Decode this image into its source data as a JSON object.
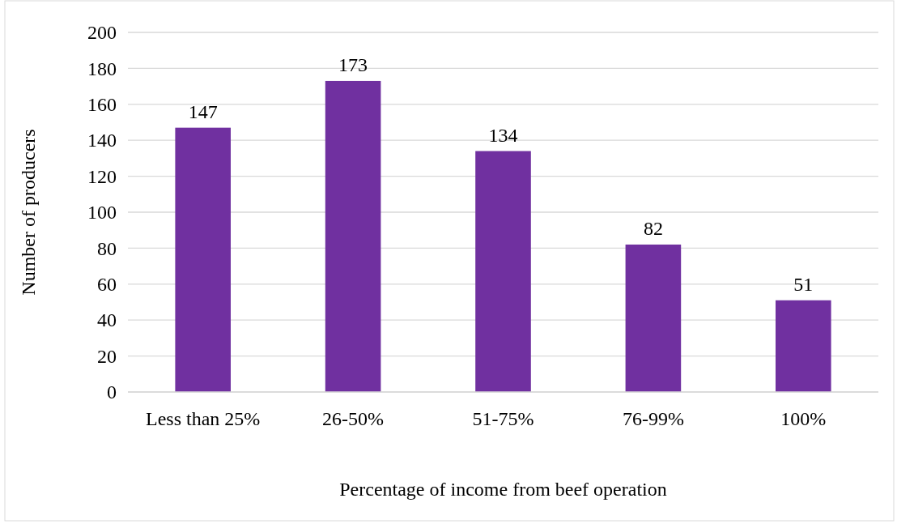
{
  "chart_data": {
    "type": "bar",
    "xlabel": "Percentage of income from beef operation",
    "ylabel": "Number of producers",
    "categories": [
      "Less than 25%",
      "26-50%",
      "51-75%",
      "76-99%",
      "100%"
    ],
    "values": [
      147,
      173,
      134,
      82,
      51
    ],
    "color": "#7030a0",
    "ylim": [
      0,
      200
    ],
    "yticks": [
      0,
      20,
      40,
      60,
      80,
      100,
      120,
      140,
      160,
      180,
      200
    ],
    "grid": "y",
    "data_labels": true
  }
}
